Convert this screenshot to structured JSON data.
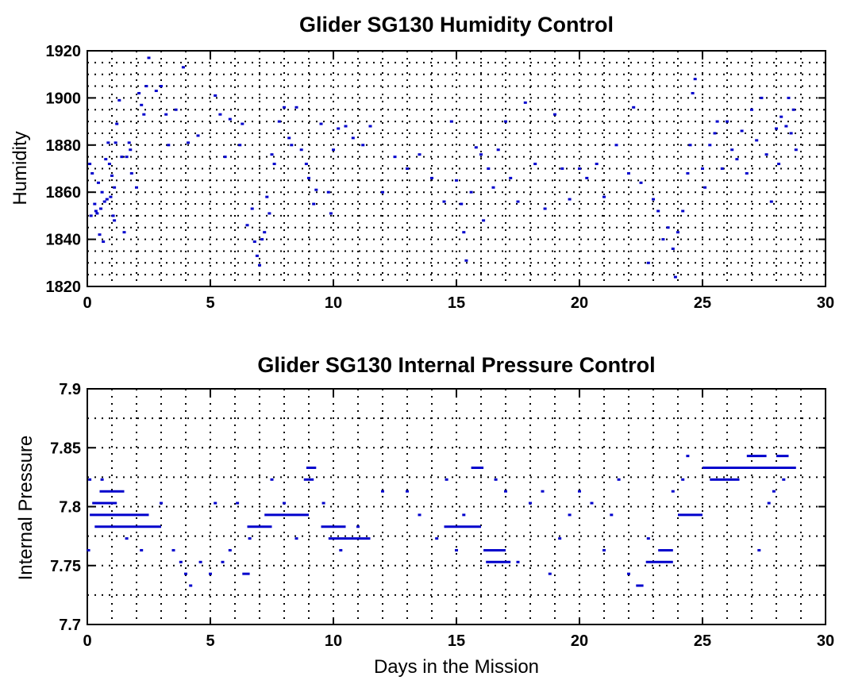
{
  "chart_data": [
    {
      "type": "scatter",
      "title": "Glider SG130 Humidity Control",
      "xlabel": "",
      "ylabel": "Humidity",
      "xlim": [
        0,
        30
      ],
      "ylim": [
        1820,
        1920
      ],
      "grid": true,
      "xticks": [
        "0",
        "5",
        "10",
        "15",
        "20",
        "25",
        "30"
      ],
      "yticks": [
        "1820",
        "1840",
        "1860",
        "1880",
        "1900",
        "1920"
      ],
      "color": "#0000cc",
      "points": [
        [
          0.1,
          1872
        ],
        [
          0.15,
          1850
        ],
        [
          0.2,
          1868
        ],
        [
          0.3,
          1855
        ],
        [
          0.35,
          1852
        ],
        [
          0.4,
          1851
        ],
        [
          0.45,
          1864
        ],
        [
          0.5,
          1842
        ],
        [
          0.55,
          1853
        ],
        [
          0.6,
          1860
        ],
        [
          0.65,
          1839
        ],
        [
          0.7,
          1856
        ],
        [
          0.75,
          1874
        ],
        [
          0.8,
          1857
        ],
        [
          0.85,
          1881
        ],
        [
          0.9,
          1872
        ],
        [
          0.95,
          1858
        ],
        [
          1.0,
          1867
        ],
        [
          1.05,
          1850
        ],
        [
          1.1,
          1862
        ],
        [
          1.1,
          1848
        ],
        [
          1.15,
          1881
        ],
        [
          1.2,
          1889
        ],
        [
          1.3,
          1899
        ],
        [
          1.4,
          1875
        ],
        [
          1.5,
          1843
        ],
        [
          1.6,
          1875
        ],
        [
          1.7,
          1881
        ],
        [
          1.75,
          1878
        ],
        [
          1.8,
          1868
        ],
        [
          2.0,
          1862
        ],
        [
          2.1,
          1902
        ],
        [
          2.2,
          1897
        ],
        [
          2.3,
          1893
        ],
        [
          2.4,
          1905
        ],
        [
          2.5,
          1917
        ],
        [
          2.8,
          1903
        ],
        [
          3.0,
          1905
        ],
        [
          3.2,
          1893
        ],
        [
          3.3,
          1880
        ],
        [
          3.6,
          1895
        ],
        [
          3.9,
          1913
        ],
        [
          4.1,
          1881
        ],
        [
          4.5,
          1884
        ],
        [
          5.2,
          1901
        ],
        [
          5.4,
          1893
        ],
        [
          5.6,
          1875
        ],
        [
          5.8,
          1891
        ],
        [
          6.2,
          1880
        ],
        [
          6.3,
          1889
        ],
        [
          6.5,
          1846
        ],
        [
          6.7,
          1853
        ],
        [
          6.8,
          1839
        ],
        [
          6.9,
          1833
        ],
        [
          7.0,
          1829
        ],
        [
          7.1,
          1840
        ],
        [
          7.2,
          1843
        ],
        [
          7.3,
          1858
        ],
        [
          7.4,
          1851
        ],
        [
          7.5,
          1876
        ],
        [
          7.6,
          1872
        ],
        [
          7.8,
          1890
        ],
        [
          8.0,
          1896
        ],
        [
          8.2,
          1883
        ],
        [
          8.3,
          1880
        ],
        [
          8.5,
          1896
        ],
        [
          8.7,
          1878
        ],
        [
          8.9,
          1872
        ],
        [
          9.0,
          1866
        ],
        [
          9.2,
          1855
        ],
        [
          9.3,
          1861
        ],
        [
          9.5,
          1889
        ],
        [
          9.8,
          1860
        ],
        [
          9.9,
          1851
        ],
        [
          10.0,
          1878
        ],
        [
          10.2,
          1887
        ],
        [
          10.5,
          1888
        ],
        [
          10.8,
          1883
        ],
        [
          11.2,
          1880
        ],
        [
          11.5,
          1888
        ],
        [
          12.0,
          1860
        ],
        [
          12.5,
          1875
        ],
        [
          13.0,
          1870
        ],
        [
          13.5,
          1876
        ],
        [
          14.0,
          1866
        ],
        [
          14.5,
          1856
        ],
        [
          14.8,
          1890
        ],
        [
          15.0,
          1865
        ],
        [
          15.2,
          1855
        ],
        [
          15.3,
          1843
        ],
        [
          15.4,
          1831
        ],
        [
          15.6,
          1860
        ],
        [
          15.8,
          1879
        ],
        [
          16.0,
          1876
        ],
        [
          16.1,
          1848
        ],
        [
          16.3,
          1870
        ],
        [
          16.5,
          1862
        ],
        [
          16.7,
          1878
        ],
        [
          17.0,
          1890
        ],
        [
          17.2,
          1866
        ],
        [
          17.5,
          1856
        ],
        [
          17.8,
          1898
        ],
        [
          18.2,
          1872
        ],
        [
          18.6,
          1853
        ],
        [
          19.0,
          1893
        ],
        [
          19.3,
          1870
        ],
        [
          19.6,
          1857
        ],
        [
          20.0,
          1870
        ],
        [
          20.3,
          1866
        ],
        [
          20.7,
          1872
        ],
        [
          21.0,
          1858
        ],
        [
          21.5,
          1880
        ],
        [
          22.0,
          1868
        ],
        [
          22.2,
          1896
        ],
        [
          22.5,
          1864
        ],
        [
          22.8,
          1830
        ],
        [
          23.0,
          1857
        ],
        [
          23.2,
          1852
        ],
        [
          23.4,
          1840
        ],
        [
          23.6,
          1845
        ],
        [
          23.8,
          1836
        ],
        [
          23.9,
          1824
        ],
        [
          24.0,
          1843
        ],
        [
          24.2,
          1852
        ],
        [
          24.4,
          1868
        ],
        [
          24.5,
          1880
        ],
        [
          24.6,
          1902
        ],
        [
          24.7,
          1908
        ],
        [
          25.0,
          1870
        ],
        [
          25.1,
          1862
        ],
        [
          25.3,
          1880
        ],
        [
          25.5,
          1885
        ],
        [
          25.6,
          1890
        ],
        [
          25.8,
          1870
        ],
        [
          26.0,
          1890
        ],
        [
          26.2,
          1878
        ],
        [
          26.4,
          1874
        ],
        [
          26.6,
          1886
        ],
        [
          26.8,
          1868
        ],
        [
          27.0,
          1895
        ],
        [
          27.2,
          1882
        ],
        [
          27.4,
          1900
        ],
        [
          27.6,
          1876
        ],
        [
          27.8,
          1856
        ],
        [
          28.0,
          1887
        ],
        [
          28.1,
          1872
        ],
        [
          28.2,
          1892
        ],
        [
          28.4,
          1888
        ],
        [
          28.5,
          1900
        ],
        [
          28.6,
          1885
        ],
        [
          28.7,
          1895
        ],
        [
          28.8,
          1878
        ]
      ]
    },
    {
      "type": "scatter",
      "title": "Glider SG130 Internal Pressure Control",
      "xlabel": "Days in the Mission",
      "ylabel": "Internal Pressure",
      "xlim": [
        0,
        30
      ],
      "ylim": [
        7.7,
        7.9
      ],
      "grid": true,
      "xticks": [
        "0",
        "5",
        "10",
        "15",
        "20",
        "25",
        "30"
      ],
      "yticks": [
        "7.7",
        "7.75",
        "7.8",
        "7.85",
        "7.9"
      ],
      "color": "#0000cc",
      "runs": [
        [
          0.2,
          1.2,
          7.803
        ],
        [
          0.5,
          1.5,
          7.813
        ],
        [
          0.3,
          3.0,
          7.783
        ],
        [
          0.1,
          2.5,
          7.793
        ],
        [
          6.3,
          6.6,
          7.743
        ],
        [
          6.5,
          7.5,
          7.783
        ],
        [
          7.2,
          9.0,
          7.793
        ],
        [
          8.8,
          9.2,
          7.823
        ],
        [
          8.9,
          9.3,
          7.833
        ],
        [
          9.5,
          10.5,
          7.783
        ],
        [
          9.8,
          11.5,
          7.773
        ],
        [
          14.5,
          16.0,
          7.783
        ],
        [
          15.6,
          16.1,
          7.833
        ],
        [
          16.1,
          17.0,
          7.763
        ],
        [
          16.2,
          17.2,
          7.753
        ],
        [
          22.3,
          22.6,
          7.733
        ],
        [
          22.7,
          23.8,
          7.753
        ],
        [
          23.2,
          23.8,
          7.763
        ],
        [
          24.0,
          25.0,
          7.793
        ],
        [
          25.0,
          28.8,
          7.833
        ],
        [
          25.3,
          26.5,
          7.823
        ],
        [
          26.8,
          27.6,
          7.843
        ],
        [
          28.0,
          28.5,
          7.843
        ]
      ],
      "points": [
        [
          0.1,
          7.823
        ],
        [
          0.05,
          7.763
        ],
        [
          0.6,
          7.823
        ],
        [
          1.6,
          7.773
        ],
        [
          2.2,
          7.763
        ],
        [
          3.0,
          7.803
        ],
        [
          3.5,
          7.763
        ],
        [
          3.8,
          7.753
        ],
        [
          4.0,
          7.743
        ],
        [
          4.2,
          7.733
        ],
        [
          4.6,
          7.753
        ],
        [
          5.0,
          7.743
        ],
        [
          5.2,
          7.803
        ],
        [
          5.5,
          7.753
        ],
        [
          5.8,
          7.763
        ],
        [
          6.1,
          7.803
        ],
        [
          6.6,
          7.773
        ],
        [
          7.5,
          7.823
        ],
        [
          8.0,
          7.803
        ],
        [
          8.5,
          7.773
        ],
        [
          9.6,
          7.803
        ],
        [
          10.3,
          7.763
        ],
        [
          11.0,
          7.783
        ],
        [
          12.0,
          7.813
        ],
        [
          13.0,
          7.813
        ],
        [
          13.5,
          7.793
        ],
        [
          14.2,
          7.773
        ],
        [
          14.6,
          7.823
        ],
        [
          15.0,
          7.763
        ],
        [
          15.3,
          7.793
        ],
        [
          16.6,
          7.823
        ],
        [
          17.0,
          7.813
        ],
        [
          17.5,
          7.753
        ],
        [
          18.0,
          7.803
        ],
        [
          18.5,
          7.813
        ],
        [
          18.8,
          7.743
        ],
        [
          19.2,
          7.773
        ],
        [
          19.6,
          7.793
        ],
        [
          20.0,
          7.813
        ],
        [
          20.5,
          7.803
        ],
        [
          21.0,
          7.763
        ],
        [
          21.3,
          7.793
        ],
        [
          21.6,
          7.823
        ],
        [
          22.0,
          7.743
        ],
        [
          22.8,
          7.773
        ],
        [
          23.8,
          7.813
        ],
        [
          24.2,
          7.823
        ],
        [
          24.4,
          7.843
        ],
        [
          27.3,
          7.763
        ],
        [
          27.7,
          7.803
        ],
        [
          27.9,
          7.813
        ],
        [
          28.3,
          7.823
        ]
      ]
    }
  ]
}
